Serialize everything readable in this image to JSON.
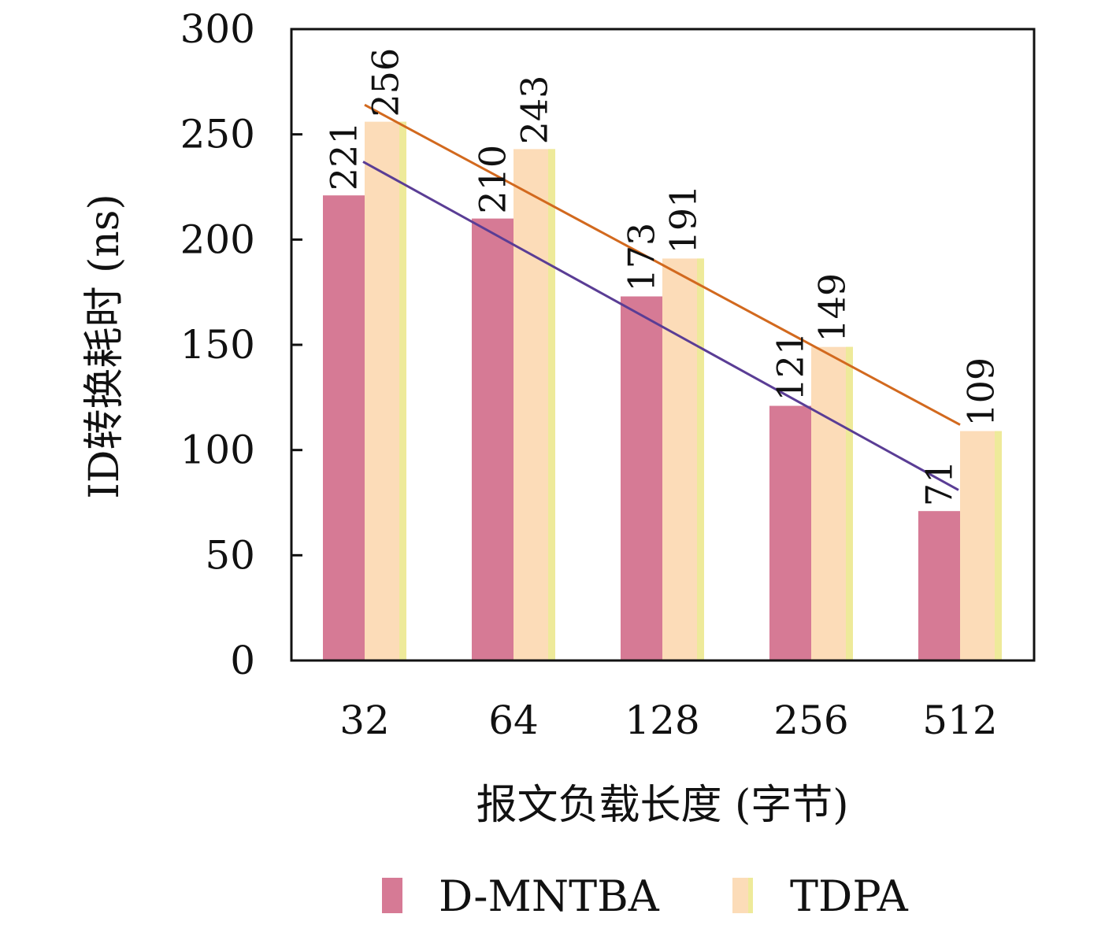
{
  "chart_data": {
    "type": "bar",
    "title": "",
    "xlabel": "报文负载长度 (字节)",
    "ylabel": "ID转换耗时 (ns)",
    "categories": [
      "32",
      "64",
      "128",
      "256",
      "512"
    ],
    "series": [
      {
        "name": "D-MNTBA",
        "values": [
          221,
          210,
          173,
          121,
          71
        ],
        "value_labels": [
          "221",
          "210",
          "173",
          "121",
          "71"
        ],
        "color": "#d67a95"
      },
      {
        "name": "TDPA",
        "values": [
          256,
          243,
          191,
          149,
          109
        ],
        "value_labels": [
          "256",
          "243",
          "191",
          "149",
          "109"
        ],
        "color": "#fcdcb8",
        "edge_color": "#eeea9a"
      }
    ],
    "trend_lines": [
      {
        "series": "D-MNTBA",
        "from": [
          0,
          237
        ],
        "to": [
          4,
          81
        ],
        "color": "#5a3d95"
      },
      {
        "series": "TDPA",
        "from": [
          0,
          264
        ],
        "to": [
          4,
          112
        ],
        "color": "#d2691e"
      }
    ],
    "ylim": [
      0,
      300
    ],
    "yticks": [
      "0",
      "50",
      "100",
      "150",
      "200",
      "250",
      "300"
    ],
    "grid": false,
    "legend": "bottom"
  }
}
